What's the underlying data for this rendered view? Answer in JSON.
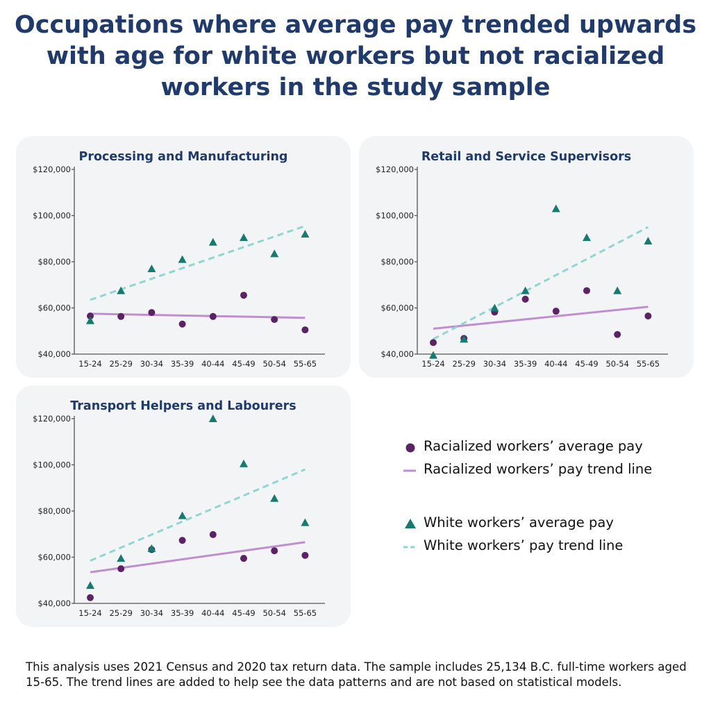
{
  "title": "Occupations where average pay trended upwards with age for white workers but not racialized workers in the study sample",
  "colors": {
    "racialized": "#5b2366",
    "racialized_trend": "#c08ed0",
    "white": "#157a70",
    "white_trend": "#8fd6d2",
    "title": "#1f3a6b",
    "panel_bg": "#f3f4f6"
  },
  "chart_data": [
    {
      "type": "scatter",
      "title": "Processing and Manufacturing",
      "categories": [
        "15-24",
        "25-29",
        "30-34",
        "35-39",
        "40-44",
        "45-49",
        "50-54",
        "55-65"
      ],
      "y_ticks": [
        "$40,000",
        "$60,000",
        "$80,000",
        "$100,000",
        "$120,000"
      ],
      "ylim": [
        40000,
        120000
      ],
      "series": [
        {
          "name": "Racialized workers’ average pay",
          "marker": "circle",
          "values": [
            56500,
            56300,
            58000,
            53000,
            56300,
            65500,
            55000,
            50500
          ]
        },
        {
          "name": "White workers’ average pay",
          "marker": "triangle",
          "values": [
            54500,
            67500,
            77000,
            81000,
            88500,
            90500,
            83500,
            92000
          ]
        }
      ],
      "trend_lines": [
        {
          "name": "Racialized workers’ pay trend line",
          "style": "solid",
          "start": 57500,
          "end": 55700
        },
        {
          "name": "White workers’ pay trend line",
          "style": "dashed",
          "start": 63500,
          "end": 95500
        }
      ]
    },
    {
      "type": "scatter",
      "title": "Retail and Service Supervisors",
      "categories": [
        "15-24",
        "25-29",
        "30-34",
        "35-39",
        "40-44",
        "45-49",
        "50-54",
        "55-65"
      ],
      "y_ticks": [
        "$40,000",
        "$60,000",
        "$80,000",
        "$100,000",
        "$120,000"
      ],
      "ylim": [
        40000,
        120000
      ],
      "series": [
        {
          "name": "Racialized workers’ average pay",
          "marker": "circle",
          "values": [
            45000,
            46800,
            58200,
            63800,
            58600,
            67500,
            48500,
            56500
          ]
        },
        {
          "name": "White workers’ average pay",
          "marker": "triangle",
          "values": [
            39500,
            46500,
            60000,
            67500,
            103000,
            90500,
            67500,
            89000
          ]
        }
      ],
      "trend_lines": [
        {
          "name": "Racialized workers’ pay trend line",
          "style": "solid",
          "start": 51000,
          "end": 60500
        },
        {
          "name": "White workers’ pay trend line",
          "style": "dashed",
          "start": 46500,
          "end": 95000
        }
      ]
    },
    {
      "type": "scatter",
      "title": "Transport Helpers and Labourers",
      "categories": [
        "15-24",
        "25-29",
        "30-34",
        "35-39",
        "40-44",
        "45-49",
        "50-54",
        "55-65"
      ],
      "y_ticks": [
        "$40,000",
        "$60,000",
        "$80,000",
        "$100,000",
        "$120,000"
      ],
      "ylim": [
        40000,
        120000
      ],
      "series": [
        {
          "name": "Racialized workers’ average pay",
          "marker": "circle",
          "values": [
            42500,
            55000,
            63300,
            67300,
            69800,
            59500,
            62800,
            60800
          ]
        },
        {
          "name": "White workers’ average pay",
          "marker": "triangle",
          "values": [
            47800,
            59500,
            63800,
            78000,
            120000,
            100500,
            85500,
            75000
          ]
        }
      ],
      "trend_lines": [
        {
          "name": "Racialized workers’ pay trend line",
          "style": "solid",
          "start": 53500,
          "end": 66500
        },
        {
          "name": "White workers’ pay trend line",
          "style": "dashed",
          "start": 58500,
          "end": 98000
        }
      ]
    }
  ],
  "legend": {
    "racialized_pay": "Racialized workers’ average pay",
    "racialized_trend": "Racialized workers’ pay trend line",
    "white_pay": "White workers’ average pay",
    "white_trend": "White workers’ pay trend line"
  },
  "footnote": "This analysis uses 2021 Census and 2020 tax return data. The sample includes 25,134 B.C. full-time workers aged 15-65. The trend lines are added to help see the data patterns and are not based on statistical models."
}
